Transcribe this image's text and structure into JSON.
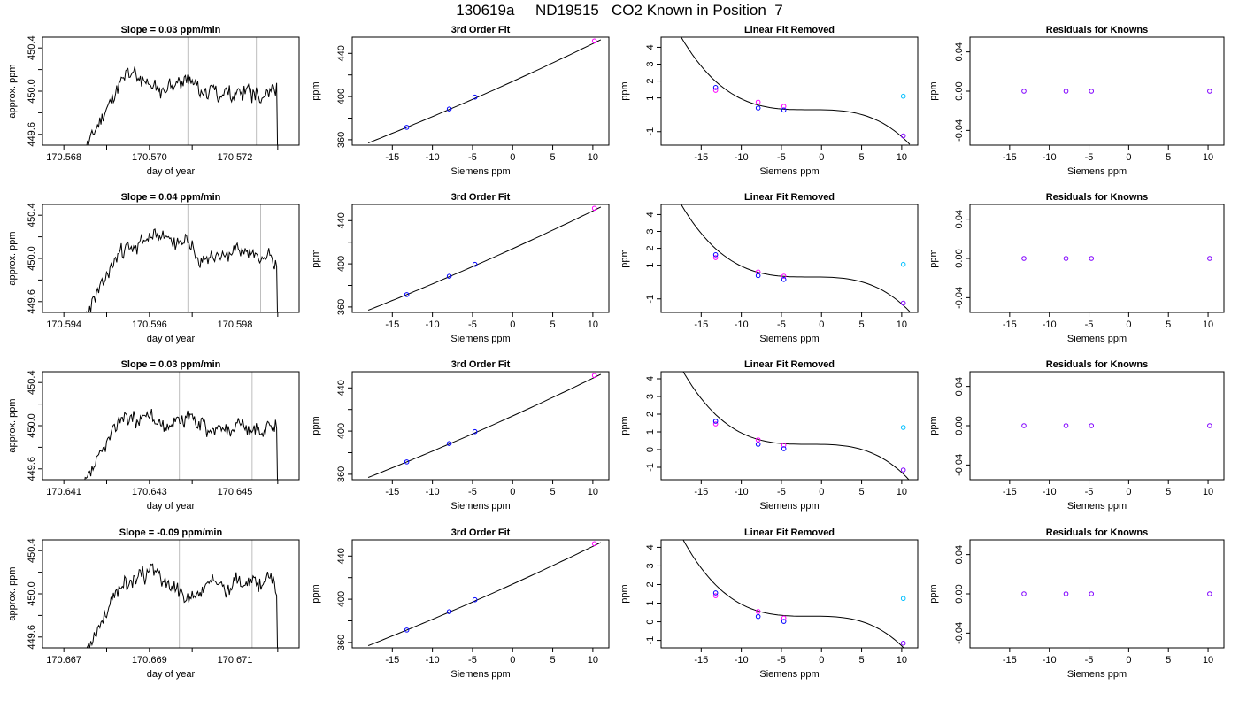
{
  "figure_title": "130619a     ND19515   CO2 Known in Position  7",
  "colors": {
    "trace": "#000000",
    "gridline": "#bebebe",
    "blue": "#0000ff",
    "magenta": "#ff00ff",
    "cyan": "#00bfff",
    "purple": "#8000ff"
  },
  "chart_data": [
    {
      "type": "line",
      "row": 1,
      "col": 1,
      "title": "Slope =  0.03  ppm/min",
      "xlabel": "day of year",
      "ylabel": "approx. ppm",
      "xlim": [
        170.5675,
        170.5735
      ],
      "ylim": [
        449.5,
        450.5
      ],
      "xticks": [
        170.567,
        170.568,
        170.569,
        170.57,
        170.571,
        170.572,
        170.573
      ],
      "xticklabels": [
        "",
        "170.568",
        "",
        "170.570",
        "",
        "170.572",
        ""
      ],
      "yticks": [
        449.6,
        449.8,
        450.0,
        450.2,
        450.4
      ],
      "yticklabels": [
        "449.6",
        "",
        "450.0",
        "",
        "450.4"
      ],
      "vlines": [
        170.5709,
        170.5725
      ],
      "series_seed": 11
    },
    {
      "type": "line",
      "row": 1,
      "col": 2,
      "title": "3rd Order Fit",
      "xlabel": "Siemens ppm",
      "ylabel": "ppm",
      "xlim": [
        -20,
        12
      ],
      "ylim": [
        355,
        455
      ],
      "xticks": [
        -15,
        -10,
        -5,
        0,
        5,
        10
      ],
      "xticklabels": [
        "-15",
        "-10",
        "-5",
        "0",
        "5",
        "10"
      ],
      "yticks": [
        360,
        380,
        400,
        420,
        440
      ],
      "yticklabels": [
        "360",
        "",
        "400",
        "",
        "440"
      ],
      "curve": {
        "kind": "fit",
        "from": -18,
        "to": 11
      },
      "points": [
        {
          "x": -13.2,
          "y": 371.5,
          "color": "blue"
        },
        {
          "x": -7.9,
          "y": 388.5,
          "color": "blue"
        },
        {
          "x": -4.7,
          "y": 399.5,
          "color": "blue"
        },
        {
          "x": 10.2,
          "y": 451.5,
          "color": "magenta"
        }
      ]
    },
    {
      "type": "scatter",
      "row": 1,
      "col": 3,
      "title": "Linear Fit Removed",
      "xlabel": "Siemens ppm",
      "ylabel": "ppm",
      "xlim": [
        -20,
        12
      ],
      "ylim": [
        -1.8,
        4.6
      ],
      "xticks": [
        -15,
        -10,
        -5,
        0,
        5,
        10
      ],
      "xticklabels": [
        "-15",
        "-10",
        "-5",
        "0",
        "5",
        "10"
      ],
      "yticks": [
        -1,
        1,
        2,
        3,
        4
      ],
      "yticklabels": [
        "-1",
        "1",
        "2",
        "3",
        "4"
      ],
      "curve": {
        "kind": "cubic",
        "from": -18,
        "to": 11,
        "a": -0.0035,
        "b": 0.45,
        "c": -0.1
      },
      "points": [
        {
          "x": -13.2,
          "y": 1.45,
          "color": "magenta"
        },
        {
          "x": -13.2,
          "y": 1.62,
          "color": "blue"
        },
        {
          "x": -7.9,
          "y": 0.75,
          "color": "magenta"
        },
        {
          "x": -7.9,
          "y": 0.4,
          "color": "blue"
        },
        {
          "x": -4.7,
          "y": 0.5,
          "color": "magenta"
        },
        {
          "x": -4.7,
          "y": 0.28,
          "color": "blue"
        },
        {
          "x": 10.2,
          "y": 1.1,
          "color": "cyan"
        },
        {
          "x": 10.2,
          "y": -1.25,
          "color": "purple"
        }
      ]
    },
    {
      "type": "scatter",
      "row": 1,
      "col": 4,
      "title": "Residuals for Knowns",
      "xlabel": "Siemens ppm",
      "ylabel": "ppm",
      "xlim": [
        -20,
        12
      ],
      "ylim": [
        -0.055,
        0.055
      ],
      "xticks": [
        -15,
        -10,
        -5,
        0,
        5,
        10
      ],
      "xticklabels": [
        "-15",
        "-10",
        "-5",
        "0",
        "5",
        "10"
      ],
      "yticks": [
        -0.04,
        0.0,
        0.04
      ],
      "yticklabels": [
        "-0.04",
        "0.00",
        "0.04"
      ],
      "points": [
        {
          "x": -13.2,
          "y": 0,
          "color": "purple"
        },
        {
          "x": -7.9,
          "y": 0,
          "color": "purple"
        },
        {
          "x": -4.7,
          "y": 0,
          "color": "purple"
        },
        {
          "x": 10.2,
          "y": 0,
          "color": "purple"
        }
      ]
    },
    {
      "type": "line",
      "row": 2,
      "col": 1,
      "title": "Slope =  0.04  ppm/min",
      "xlabel": "day of year",
      "ylabel": "approx. ppm",
      "xlim": [
        170.5935,
        170.5995
      ],
      "ylim": [
        449.5,
        450.5
      ],
      "xticks": [
        170.593,
        170.594,
        170.595,
        170.596,
        170.597,
        170.598,
        170.599
      ],
      "xticklabels": [
        "",
        "170.594",
        "",
        "170.596",
        "",
        "170.598",
        ""
      ],
      "yticks": [
        449.6,
        449.8,
        450.0,
        450.2,
        450.4
      ],
      "yticklabels": [
        "449.6",
        "",
        "450.0",
        "",
        "450.4"
      ],
      "vlines": [
        170.5969,
        170.5986
      ],
      "series_seed": 23
    },
    {
      "type": "line",
      "row": 2,
      "col": 2,
      "title": "3rd Order Fit",
      "xlabel": "Siemens ppm",
      "ylabel": "ppm",
      "xlim": [
        -20,
        12
      ],
      "ylim": [
        355,
        455
      ],
      "xticks": [
        -15,
        -10,
        -5,
        0,
        5,
        10
      ],
      "xticklabels": [
        "-15",
        "-10",
        "-5",
        "0",
        "5",
        "10"
      ],
      "yticks": [
        360,
        380,
        400,
        420,
        440
      ],
      "yticklabels": [
        "360",
        "",
        "400",
        "",
        "440"
      ],
      "curve": {
        "kind": "fit",
        "from": -18,
        "to": 11
      },
      "points": [
        {
          "x": -13.2,
          "y": 371.5,
          "color": "blue"
        },
        {
          "x": -7.9,
          "y": 388.5,
          "color": "blue"
        },
        {
          "x": -4.7,
          "y": 399.5,
          "color": "blue"
        },
        {
          "x": 10.2,
          "y": 451.5,
          "color": "magenta"
        }
      ]
    },
    {
      "type": "scatter",
      "row": 2,
      "col": 3,
      "title": "Linear Fit Removed",
      "xlabel": "Siemens ppm",
      "ylabel": "ppm",
      "xlim": [
        -20,
        12
      ],
      "ylim": [
        -1.8,
        4.6
      ],
      "xticks": [
        -15,
        -10,
        -5,
        0,
        5,
        10
      ],
      "xticklabels": [
        "-15",
        "-10",
        "-5",
        "0",
        "5",
        "10"
      ],
      "yticks": [
        -1,
        1,
        2,
        3,
        4
      ],
      "yticklabels": [
        "-1",
        "1",
        "2",
        "3",
        "4"
      ],
      "curve": {
        "kind": "cubic",
        "from": -18,
        "to": 11,
        "a": -0.0035,
        "b": 0.45,
        "c": -0.1
      },
      "points": [
        {
          "x": -13.2,
          "y": 1.45,
          "color": "magenta"
        },
        {
          "x": -13.2,
          "y": 1.62,
          "color": "blue"
        },
        {
          "x": -7.9,
          "y": 0.6,
          "color": "magenta"
        },
        {
          "x": -7.9,
          "y": 0.38,
          "color": "blue"
        },
        {
          "x": -4.7,
          "y": 0.35,
          "color": "magenta"
        },
        {
          "x": -4.7,
          "y": 0.15,
          "color": "blue"
        },
        {
          "x": 10.2,
          "y": 1.05,
          "color": "cyan"
        },
        {
          "x": 10.2,
          "y": -1.25,
          "color": "purple"
        }
      ]
    },
    {
      "type": "scatter",
      "row": 2,
      "col": 4,
      "title": "Residuals for Knowns",
      "xlabel": "Siemens ppm",
      "ylabel": "ppm",
      "xlim": [
        -20,
        12
      ],
      "ylim": [
        -0.055,
        0.055
      ],
      "xticks": [
        -15,
        -10,
        -5,
        0,
        5,
        10
      ],
      "xticklabels": [
        "-15",
        "-10",
        "-5",
        "0",
        "5",
        "10"
      ],
      "yticks": [
        -0.04,
        0.0,
        0.04
      ],
      "yticklabels": [
        "-0.04",
        "0.00",
        "0.04"
      ],
      "points": [
        {
          "x": -13.2,
          "y": 0,
          "color": "purple"
        },
        {
          "x": -7.9,
          "y": 0,
          "color": "purple"
        },
        {
          "x": -4.7,
          "y": 0,
          "color": "purple"
        },
        {
          "x": 10.2,
          "y": 0,
          "color": "purple"
        }
      ]
    },
    {
      "type": "line",
      "row": 3,
      "col": 1,
      "title": "Slope =  0.03  ppm/min",
      "xlabel": "day of year",
      "ylabel": "approx. ppm",
      "xlim": [
        170.6405,
        170.6465
      ],
      "ylim": [
        449.5,
        450.5
      ],
      "xticks": [
        170.64,
        170.641,
        170.642,
        170.643,
        170.644,
        170.645,
        170.646
      ],
      "xticklabels": [
        "",
        "170.641",
        "",
        "170.643",
        "",
        "170.645",
        ""
      ],
      "yticks": [
        449.6,
        449.8,
        450.0,
        450.2,
        450.4
      ],
      "yticklabels": [
        "449.6",
        "",
        "450.0",
        "",
        "450.4"
      ],
      "vlines": [
        170.6437,
        170.6454
      ],
      "series_seed": 37
    },
    {
      "type": "line",
      "row": 3,
      "col": 2,
      "title": "3rd Order Fit",
      "xlabel": "Siemens ppm",
      "ylabel": "ppm",
      "xlim": [
        -20,
        12
      ],
      "ylim": [
        355,
        455
      ],
      "xticks": [
        -15,
        -10,
        -5,
        0,
        5,
        10
      ],
      "xticklabels": [
        "-15",
        "-10",
        "-5",
        "0",
        "5",
        "10"
      ],
      "yticks": [
        360,
        380,
        400,
        420,
        440
      ],
      "yticklabels": [
        "360",
        "",
        "400",
        "",
        "440"
      ],
      "curve": {
        "kind": "fit",
        "from": -18,
        "to": 11
      },
      "points": [
        {
          "x": -13.2,
          "y": 371.5,
          "color": "blue"
        },
        {
          "x": -7.9,
          "y": 388.5,
          "color": "blue"
        },
        {
          "x": -4.7,
          "y": 399.5,
          "color": "blue"
        },
        {
          "x": 10.2,
          "y": 451.5,
          "color": "magenta"
        }
      ]
    },
    {
      "type": "scatter",
      "row": 3,
      "col": 3,
      "title": "Linear Fit Removed",
      "xlabel": "Siemens ppm",
      "ylabel": "ppm",
      "xlim": [
        -20,
        12
      ],
      "ylim": [
        -1.7,
        4.4
      ],
      "xticks": [
        -15,
        -10,
        -5,
        0,
        5,
        10
      ],
      "xticklabels": [
        "-15",
        "-10",
        "-5",
        "0",
        "5",
        "10"
      ],
      "yticks": [
        -1,
        0,
        1,
        2,
        3,
        4
      ],
      "yticklabels": [
        "-1",
        "0",
        "1",
        "2",
        "3",
        "4"
      ],
      "curve": {
        "kind": "cubic",
        "from": -18,
        "to": 11,
        "a": -0.0035,
        "b": 0.45,
        "c": -0.1
      },
      "points": [
        {
          "x": -13.2,
          "y": 1.45,
          "color": "magenta"
        },
        {
          "x": -13.2,
          "y": 1.6,
          "color": "blue"
        },
        {
          "x": -7.9,
          "y": 0.55,
          "color": "magenta"
        },
        {
          "x": -7.9,
          "y": 0.3,
          "color": "blue"
        },
        {
          "x": -4.7,
          "y": 0.25,
          "color": "magenta"
        },
        {
          "x": -4.7,
          "y": 0.05,
          "color": "blue"
        },
        {
          "x": 10.2,
          "y": 1.25,
          "color": "cyan"
        },
        {
          "x": 10.2,
          "y": -1.15,
          "color": "purple"
        }
      ]
    },
    {
      "type": "scatter",
      "row": 3,
      "col": 4,
      "title": "Residuals for Knowns",
      "xlabel": "Siemens ppm",
      "ylabel": "ppm",
      "xlim": [
        -20,
        12
      ],
      "ylim": [
        -0.055,
        0.055
      ],
      "xticks": [
        -15,
        -10,
        -5,
        0,
        5,
        10
      ],
      "xticklabels": [
        "-15",
        "-10",
        "-5",
        "0",
        "5",
        "10"
      ],
      "yticks": [
        -0.04,
        0.0,
        0.04
      ],
      "yticklabels": [
        "-0.04",
        "0.00",
        "0.04"
      ],
      "points": [
        {
          "x": -13.2,
          "y": 0,
          "color": "purple"
        },
        {
          "x": -7.9,
          "y": 0,
          "color": "purple"
        },
        {
          "x": -4.7,
          "y": 0,
          "color": "purple"
        },
        {
          "x": 10.2,
          "y": 0,
          "color": "purple"
        }
      ]
    },
    {
      "type": "line",
      "row": 4,
      "col": 1,
      "title": "Slope =  -0.09  ppm/min",
      "xlabel": "day of year",
      "ylabel": "approx. ppm",
      "xlim": [
        170.6665,
        170.6725
      ],
      "ylim": [
        449.5,
        450.5
      ],
      "xticks": [
        170.666,
        170.667,
        170.668,
        170.669,
        170.67,
        170.671,
        170.672
      ],
      "xticklabels": [
        "",
        "170.667",
        "",
        "170.669",
        "",
        "170.671",
        ""
      ],
      "yticks": [
        449.6,
        449.8,
        450.0,
        450.2,
        450.4
      ],
      "yticklabels": [
        "449.6",
        "",
        "450.0",
        "",
        "450.4"
      ],
      "vlines": [
        170.6697,
        170.6714
      ],
      "series_seed": 53
    },
    {
      "type": "line",
      "row": 4,
      "col": 2,
      "title": "3rd Order Fit",
      "xlabel": "Siemens ppm",
      "ylabel": "ppm",
      "xlim": [
        -20,
        12
      ],
      "ylim": [
        355,
        455
      ],
      "xticks": [
        -15,
        -10,
        -5,
        0,
        5,
        10
      ],
      "xticklabels": [
        "-15",
        "-10",
        "-5",
        "0",
        "5",
        "10"
      ],
      "yticks": [
        360,
        380,
        400,
        420,
        440
      ],
      "yticklabels": [
        "360",
        "",
        "400",
        "",
        "440"
      ],
      "curve": {
        "kind": "fit",
        "from": -18,
        "to": 11
      },
      "points": [
        {
          "x": -13.2,
          "y": 371.5,
          "color": "blue"
        },
        {
          "x": -7.9,
          "y": 388.5,
          "color": "blue"
        },
        {
          "x": -4.7,
          "y": 399.5,
          "color": "blue"
        },
        {
          "x": 10.2,
          "y": 451.5,
          "color": "magenta"
        }
      ]
    },
    {
      "type": "scatter",
      "row": 4,
      "col": 3,
      "title": "Linear Fit Removed",
      "xlabel": "Siemens ppm",
      "ylabel": "ppm",
      "xlim": [
        -20,
        12
      ],
      "ylim": [
        -1.4,
        4.4
      ],
      "xticks": [
        -15,
        -10,
        -5,
        0,
        5,
        10
      ],
      "xticklabels": [
        "-15",
        "-10",
        "-5",
        "0",
        "5",
        "10"
      ],
      "yticks": [
        -1,
        0,
        1,
        2,
        3,
        4
      ],
      "yticklabels": [
        "-1",
        "0",
        "1",
        "2",
        "3",
        "4"
      ],
      "curve": {
        "kind": "cubic",
        "from": -18,
        "to": 11,
        "a": -0.0035,
        "b": 0.45,
        "c": -0.1
      },
      "points": [
        {
          "x": -13.2,
          "y": 1.4,
          "color": "magenta"
        },
        {
          "x": -13.2,
          "y": 1.55,
          "color": "blue"
        },
        {
          "x": -7.9,
          "y": 0.55,
          "color": "magenta"
        },
        {
          "x": -7.9,
          "y": 0.28,
          "color": "blue"
        },
        {
          "x": -4.7,
          "y": 0.2,
          "color": "magenta"
        },
        {
          "x": -4.7,
          "y": 0.02,
          "color": "blue"
        },
        {
          "x": 10.2,
          "y": 1.25,
          "color": "cyan"
        },
        {
          "x": 10.2,
          "y": -1.15,
          "color": "purple"
        }
      ]
    },
    {
      "type": "scatter",
      "row": 4,
      "col": 4,
      "title": "Residuals for Knowns",
      "xlabel": "Siemens ppm",
      "ylabel": "ppm",
      "xlim": [
        -20,
        12
      ],
      "ylim": [
        -0.055,
        0.055
      ],
      "xticks": [
        -15,
        -10,
        -5,
        0,
        5,
        10
      ],
      "xticklabels": [
        "-15",
        "-10",
        "-5",
        "0",
        "5",
        "10"
      ],
      "yticks": [
        -0.04,
        0.0,
        0.04
      ],
      "yticklabels": [
        "-0.04",
        "0.00",
        "0.04"
      ],
      "points": [
        {
          "x": -13.2,
          "y": 0,
          "color": "purple"
        },
        {
          "x": -7.9,
          "y": 0,
          "color": "purple"
        },
        {
          "x": -4.7,
          "y": 0,
          "color": "purple"
        },
        {
          "x": 10.2,
          "y": 0,
          "color": "purple"
        }
      ]
    }
  ]
}
